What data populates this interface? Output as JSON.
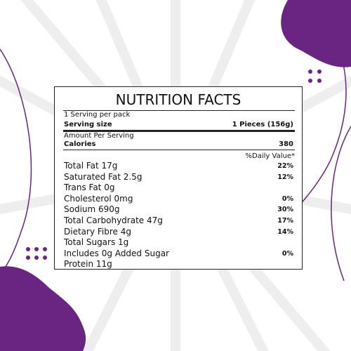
{
  "panel": {
    "title": "NUTRITION FACTS",
    "servings_per_pack": "1 Serving per pack",
    "serving_size_label": "Serving size",
    "serving_size_value": "1 Pieces (156g)",
    "amount_per_serving": "Amount Per Serving",
    "calories_label": "Calories",
    "calories_value": "380",
    "daily_value_header": "%Daily Value*",
    "rows": [
      {
        "label": "Total Fat 17g",
        "dv": "22%"
      },
      {
        "label": "Saturated Fat 2.5g",
        "dv": "12%"
      },
      {
        "label": "Trans Fat 0g"
      },
      {
        "label": "Cholesterol 0mg",
        "dv": "0%"
      },
      {
        "label": "Sodium 690g",
        "dv": "30%"
      },
      {
        "label": "Total Carbohydrate 47g",
        "dv": "17%"
      },
      {
        "label": "Dietary Fibre 4g",
        "dv": "14%"
      },
      {
        "label": "Total Sugars 1g"
      },
      {
        "label": "Includes 0g Added Sugar",
        "dv": "0%"
      },
      {
        "label": "Protein 11g"
      }
    ]
  }
}
